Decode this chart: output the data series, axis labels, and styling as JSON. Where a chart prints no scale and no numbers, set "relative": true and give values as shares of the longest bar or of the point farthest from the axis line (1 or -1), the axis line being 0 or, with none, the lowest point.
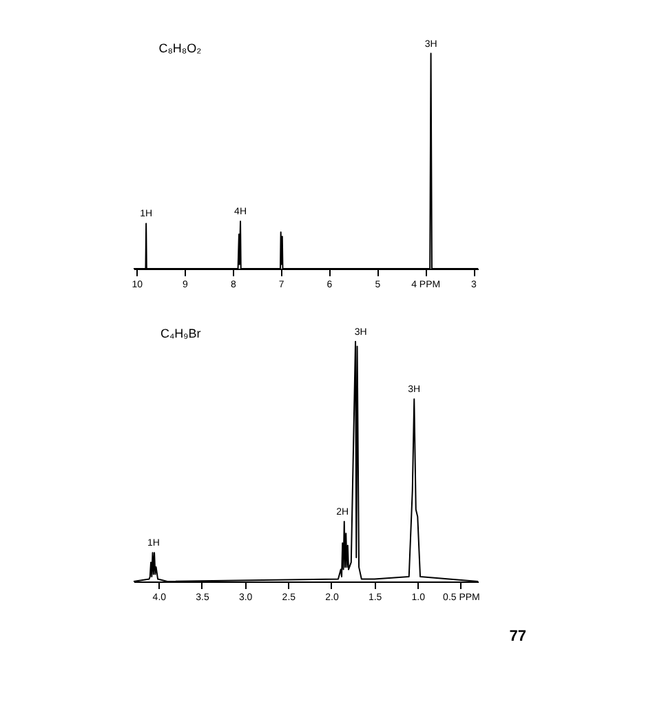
{
  "chart_data": [
    {
      "type": "line",
      "title": "C₈H₈O₂",
      "relative": true,
      "grid": false,
      "marker": "none",
      "line_style": "solid",
      "xlim": [
        10.06,
        2.9
      ],
      "xticks": [
        10,
        9,
        8,
        7,
        6,
        5,
        {
          "value": 4,
          "label": "4 PPM"
        },
        3
      ],
      "series": [
        {
          "color": "#000000",
          "x": [
            10.06,
            9.81,
            9.8,
            9.79,
            7.89,
            7.87,
            7.86,
            7.84,
            7.83,
            7.01,
            7.0,
            6.99,
            6.97,
            6.96,
            3.9,
            3.88,
            3.86,
            2.9
          ],
          "values": [
            0,
            0,
            0.21,
            0,
            0,
            0.16,
            0.02,
            0.22,
            0,
            0,
            0.17,
            0.02,
            0.15,
            0,
            0,
            1,
            0,
            0
          ]
        }
      ],
      "annotations": [
        {
          "text": "1H",
          "x": 9.8,
          "y": 0.21
        },
        {
          "text": "4H",
          "x": 7.84,
          "y": 0.22
        },
        {
          "text": "3H",
          "x": 3.88,
          "y": 1
        }
      ]
    },
    {
      "type": "line",
      "title": "C₄H₉Br",
      "relative": true,
      "grid": false,
      "marker": "none",
      "line_style": "solid",
      "xlim": [
        4.29,
        0.3
      ],
      "xticks": [
        {
          "value": 4,
          "label": "4.0"
        },
        3.5,
        {
          "value": 3,
          "label": "3.0"
        },
        2.5,
        {
          "value": 2,
          "label": "2.0"
        },
        1.5,
        {
          "value": 1,
          "label": "1.0"
        },
        {
          "value": 0.5,
          "label": "0.5 PPM"
        }
      ],
      "series": [
        {
          "color": "#000000",
          "x": [
            4.29,
            4.11,
            4.1,
            4.09,
            4.08,
            4.07,
            4.06,
            4.05,
            4.04,
            4.03,
            4.01,
            3.9,
            1.92,
            1.89,
            1.88,
            1.87,
            1.86,
            1.85,
            1.84,
            1.83,
            1.82,
            1.81,
            1.8,
            1.77,
            1.72,
            1.71,
            1.7,
            1.68,
            1.65,
            1.5,
            1.1,
            1.06,
            1.04,
            1.02,
            1.0,
            0.97,
            0.3
          ],
          "values": [
            0,
            0.01,
            0.02,
            0.08,
            0.02,
            0.12,
            0.03,
            0.12,
            0.03,
            0.06,
            0.01,
            0,
            0.01,
            0.05,
            0.02,
            0.16,
            0.05,
            0.25,
            0.06,
            0.2,
            0.06,
            0.15,
            0.05,
            0.08,
            1,
            0.1,
            0.98,
            0.06,
            0.01,
            0.01,
            0.02,
            0.38,
            0.76,
            0.3,
            0.27,
            0.02,
            0
          ]
        }
      ],
      "annotations": [
        {
          "text": "1H",
          "x": 4.06,
          "y": 0.12
        },
        {
          "text": "2H",
          "x": 1.87,
          "y": 0.25
        },
        {
          "text": "3H",
          "x": 1.66,
          "y": 1
        },
        {
          "text": "3H",
          "x": 1.04,
          "y": 0.76
        },
        "77"
      ]
    }
  ]
}
